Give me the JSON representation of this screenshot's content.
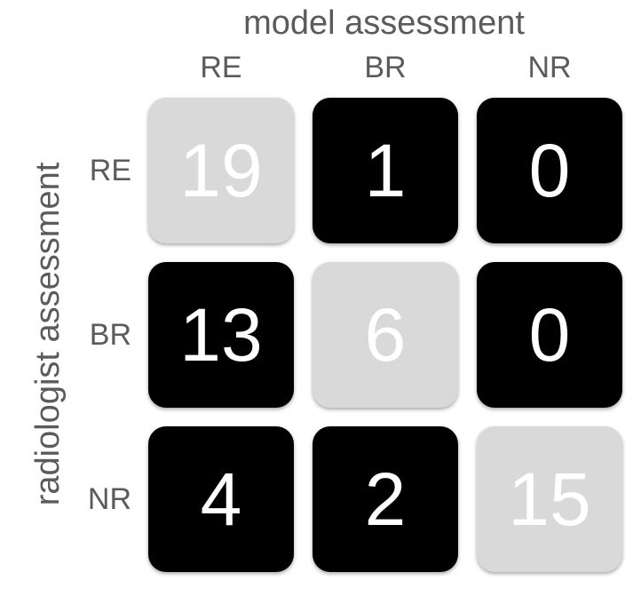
{
  "chart_data": {
    "type": "heatmap",
    "x_axis_title": "model assessment",
    "y_axis_title": "radiologist assessment",
    "columns": [
      "RE",
      "BR",
      "NR"
    ],
    "rows": [
      "RE",
      "BR",
      "NR"
    ],
    "values": [
      [
        19,
        1,
        0
      ],
      [
        13,
        6,
        0
      ],
      [
        4,
        2,
        15
      ]
    ],
    "colors": {
      "diagonal_bg": "#d9d9d9",
      "off_diagonal_bg": "#000000",
      "text": "#ffffff",
      "label_text": "#5b5b5b"
    }
  }
}
